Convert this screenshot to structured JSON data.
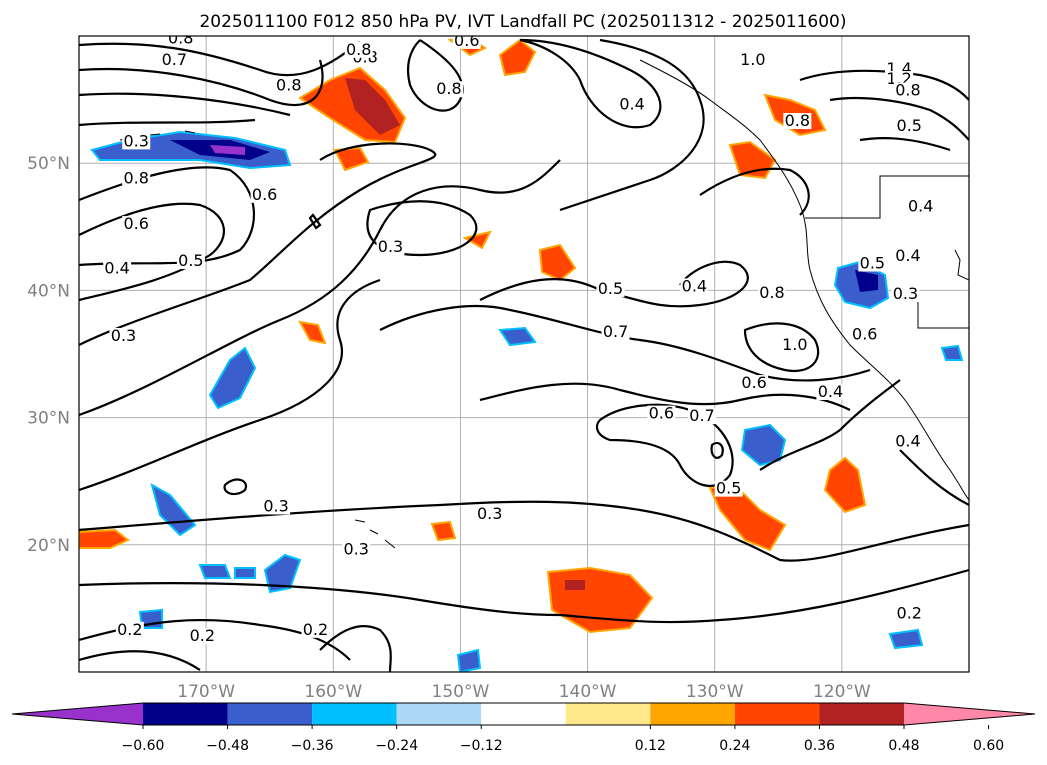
{
  "title": "2025011100 F012 850 hPa PV, IVT Landfall PC (2025011312 - 2025011600)",
  "map": {
    "lon_range": [
      -180,
      -110
    ],
    "lat_range": [
      10,
      60
    ],
    "grid": true,
    "lat_ticks": [
      {
        "value": 50,
        "label": "50°N"
      },
      {
        "value": 40,
        "label": "40°N"
      },
      {
        "value": 30,
        "label": "30°N"
      },
      {
        "value": 20,
        "label": "20°N"
      }
    ],
    "lon_ticks": [
      {
        "value": -170,
        "label": "170°W"
      },
      {
        "value": -160,
        "label": "160°W"
      },
      {
        "value": -150,
        "label": "150°W"
      },
      {
        "value": -140,
        "label": "140°W"
      },
      {
        "value": -130,
        "label": "130°W"
      },
      {
        "value": -120,
        "label": "120°W"
      }
    ],
    "contour_labels": [
      {
        "text": "0.8",
        "lon": -172,
        "lat": 59.5
      },
      {
        "text": "0.7",
        "lon": -172.5,
        "lat": 57.8
      },
      {
        "text": "0.8",
        "lon": -157.5,
        "lat": 58
      },
      {
        "text": "0.8",
        "lon": -158,
        "lat": 58.6
      },
      {
        "text": "0.6",
        "lon": -149.5,
        "lat": 59.3
      },
      {
        "text": "1.0",
        "lon": -127,
        "lat": 57.8
      },
      {
        "text": "1.4",
        "lon": -115.5,
        "lat": 57.1
      },
      {
        "text": "1.2",
        "lon": -115.5,
        "lat": 56.3
      },
      {
        "text": "0.8",
        "lon": -114.8,
        "lat": 55.4
      },
      {
        "text": "0.8",
        "lon": -163.5,
        "lat": 55.8
      },
      {
        "text": "0.8",
        "lon": -150.9,
        "lat": 55.5
      },
      {
        "text": "0.4",
        "lon": -136.5,
        "lat": 54.3
      },
      {
        "text": "0.8",
        "lon": -123.5,
        "lat": 53
      },
      {
        "text": "0.5",
        "lon": -114.7,
        "lat": 52.6
      },
      {
        "text": "0.3",
        "lon": -175.5,
        "lat": 51.4
      },
      {
        "text": "0.8",
        "lon": -175.5,
        "lat": 48.5
      },
      {
        "text": "0.6",
        "lon": -165.4,
        "lat": 47.2
      },
      {
        "text": "0.6",
        "lon": -175.5,
        "lat": 44.9
      },
      {
        "text": "0.3",
        "lon": -155.5,
        "lat": 43.1
      },
      {
        "text": "0.5",
        "lon": -171.2,
        "lat": 42
      },
      {
        "text": "0.4",
        "lon": -177,
        "lat": 41.4
      },
      {
        "text": "0.4",
        "lon": -113.8,
        "lat": 46.3
      },
      {
        "text": "0.4",
        "lon": -114.8,
        "lat": 42.4
      },
      {
        "text": "0.5",
        "lon": -117.6,
        "lat": 41.8
      },
      {
        "text": "0.3",
        "lon": -115,
        "lat": 39.4
      },
      {
        "text": "0.5",
        "lon": -138.2,
        "lat": 39.8
      },
      {
        "text": "0.4",
        "lon": -131.6,
        "lat": 40
      },
      {
        "text": "0.8",
        "lon": -125.5,
        "lat": 39.5
      },
      {
        "text": "0.6",
        "lon": -118.2,
        "lat": 36.2
      },
      {
        "text": "1.0",
        "lon": -123.7,
        "lat": 35.4
      },
      {
        "text": "0.3",
        "lon": -176.5,
        "lat": 36.1
      },
      {
        "text": "0.7",
        "lon": -137.8,
        "lat": 36.4
      },
      {
        "text": "0.6",
        "lon": -126.9,
        "lat": 32.4
      },
      {
        "text": "0.4",
        "lon": -120.9,
        "lat": 31.7
      },
      {
        "text": "0.6",
        "lon": -134.2,
        "lat": 30
      },
      {
        "text": "0.7",
        "lon": -131,
        "lat": 29.8
      },
      {
        "text": "0.4",
        "lon": -114.8,
        "lat": 27.8
      },
      {
        "text": "0.5",
        "lon": -128.9,
        "lat": 24.1
      },
      {
        "text": "0.3",
        "lon": -164.5,
        "lat": 22.7
      },
      {
        "text": "0.3",
        "lon": -147.7,
        "lat": 22.1
      },
      {
        "text": "0.3",
        "lon": -158.2,
        "lat": 19.3
      },
      {
        "text": "0.2",
        "lon": -176,
        "lat": 13
      },
      {
        "text": "0.2",
        "lon": -170.3,
        "lat": 12.5
      },
      {
        "text": "0.2",
        "lon": -161.4,
        "lat": 13
      },
      {
        "text": "0.2",
        "lon": -114.7,
        "lat": 14.3
      }
    ]
  },
  "colorbar": {
    "ticks": [
      "−0.60",
      "−0.48",
      "−0.36",
      "−0.24",
      "−0.12",
      "0.12",
      "0.24",
      "0.36",
      "0.48",
      "0.60"
    ],
    "bins": [
      {
        "color": "#9932cc"
      },
      {
        "color": "#00008b"
      },
      {
        "color": "#3a5fcd"
      },
      {
        "color": "#00bfff"
      },
      {
        "color": "#add8f5"
      },
      {
        "color": "#ffffff"
      },
      {
        "color": "#ffe88a"
      },
      {
        "color": "#ffa500"
      },
      {
        "color": "#ff4500"
      },
      {
        "color": "#b22222"
      },
      {
        "color": "#ff88a8"
      }
    ]
  }
}
